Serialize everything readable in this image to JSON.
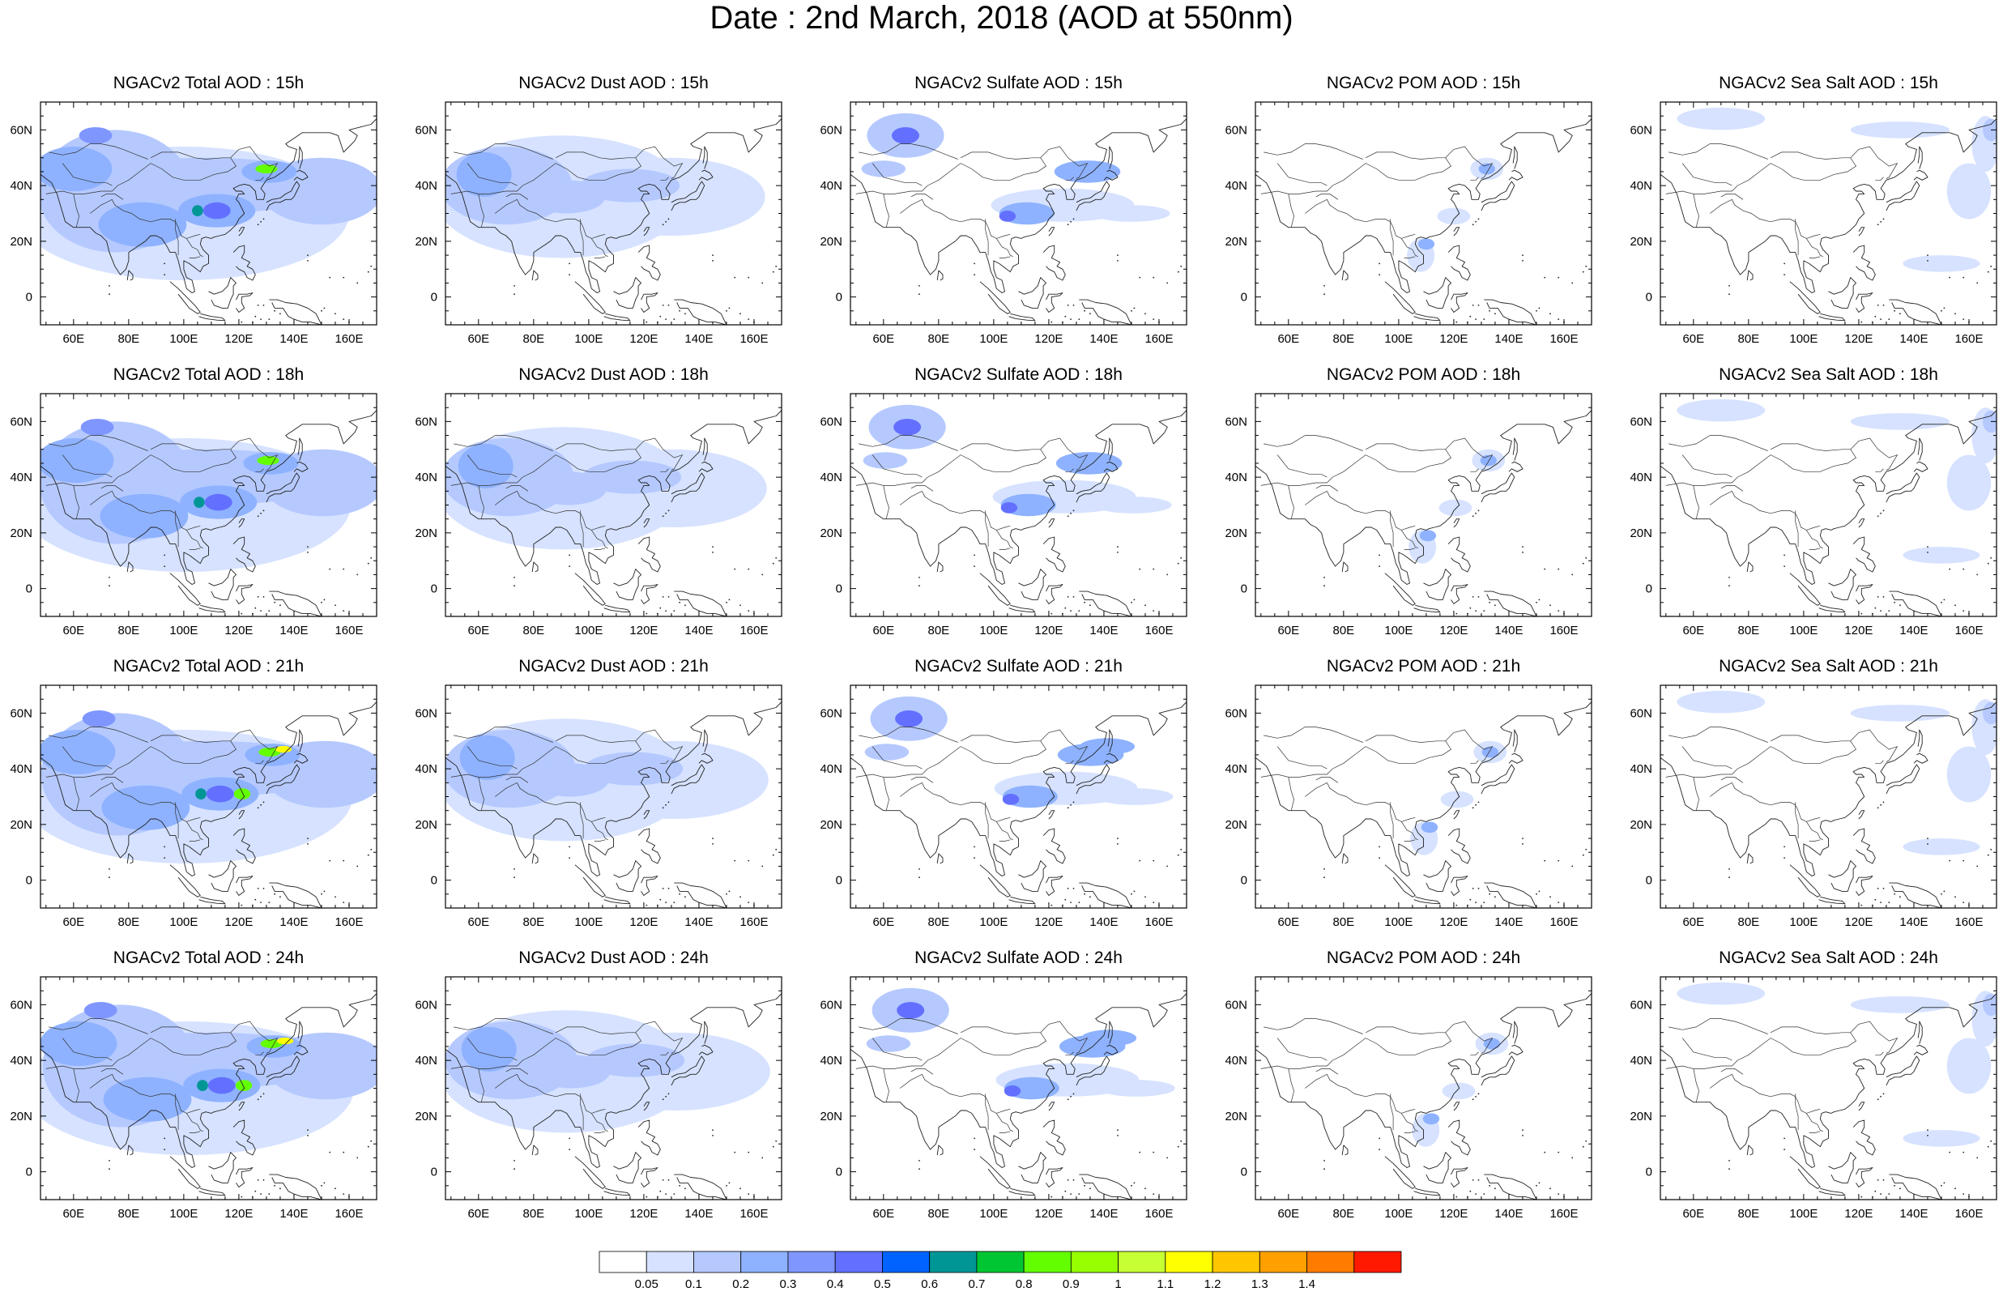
{
  "figure": {
    "title": "Date : 2nd March, 2018 (AOD at 550nm)"
  },
  "axes": {
    "x_ticks": [
      "60E",
      "80E",
      "100E",
      "120E",
      "140E",
      "160E"
    ],
    "x_tick_values": [
      60,
      80,
      100,
      120,
      140,
      160
    ],
    "y_ticks": [
      "60N",
      "40N",
      "20N",
      "0"
    ],
    "y_tick_values": [
      60,
      40,
      20,
      0
    ],
    "lon_range": [
      48,
      170
    ],
    "lat_range": [
      -10,
      70
    ]
  },
  "panels": [
    {
      "title": "NGACv2 Total AOD : 15h",
      "species": "total",
      "hour": 15
    },
    {
      "title": "NGACv2 Dust AOD : 15h",
      "species": "dust",
      "hour": 15
    },
    {
      "title": "NGACv2 Sulfate AOD : 15h",
      "species": "sulfate",
      "hour": 15
    },
    {
      "title": "NGACv2 POM AOD : 15h",
      "species": "pom",
      "hour": 15
    },
    {
      "title": "NGACv2 Sea Salt AOD : 15h",
      "species": "seasalt",
      "hour": 15
    },
    {
      "title": "NGACv2 Total AOD : 18h",
      "species": "total",
      "hour": 18
    },
    {
      "title": "NGACv2 Dust AOD : 18h",
      "species": "dust",
      "hour": 18
    },
    {
      "title": "NGACv2 Sulfate AOD : 18h",
      "species": "sulfate",
      "hour": 18
    },
    {
      "title": "NGACv2 POM AOD : 18h",
      "species": "pom",
      "hour": 18
    },
    {
      "title": "NGACv2 Sea Salt AOD : 18h",
      "species": "seasalt",
      "hour": 18
    },
    {
      "title": "NGACv2 Total AOD : 21h",
      "species": "total",
      "hour": 21
    },
    {
      "title": "NGACv2 Dust AOD : 21h",
      "species": "dust",
      "hour": 21
    },
    {
      "title": "NGACv2 Sulfate AOD : 21h",
      "species": "sulfate",
      "hour": 21
    },
    {
      "title": "NGACv2 POM AOD : 21h",
      "species": "pom",
      "hour": 21
    },
    {
      "title": "NGACv2 Sea Salt AOD : 21h",
      "species": "seasalt",
      "hour": 21
    },
    {
      "title": "NGACv2 Total AOD : 24h",
      "species": "total",
      "hour": 24
    },
    {
      "title": "NGACv2 Dust AOD : 24h",
      "species": "dust",
      "hour": 24
    },
    {
      "title": "NGACv2 Sulfate AOD : 24h",
      "species": "sulfate",
      "hour": 24
    },
    {
      "title": "NGACv2 POM AOD : 24h",
      "species": "pom",
      "hour": 24
    },
    {
      "title": "NGACv2 Sea Salt  AOD : 24h",
      "species": "seasalt",
      "hour": 24
    }
  ],
  "colorbar": {
    "labels": [
      "0.05",
      "0.1",
      "0.2",
      "0.3",
      "0.4",
      "0.5",
      "0.6",
      "0.7",
      "0.8",
      "0.9",
      "1",
      "1.1",
      "1.2",
      "1.3",
      "1.4"
    ],
    "colors": [
      "#ffffff",
      "#d6e2ff",
      "#b5c9ff",
      "#8eb2ff",
      "#7f96ff",
      "#6370ff",
      "#0063ff",
      "#009696",
      "#00c633",
      "#63ff00",
      "#96ff00",
      "#c6ff33",
      "#ffff00",
      "#ffc600",
      "#ffa000",
      "#ff7c00",
      "#ff1900"
    ]
  },
  "color_levels": {
    "very_light": "#d6e2ff",
    "light": "#b5c9ff",
    "medium": "#8eb2ff",
    "strong": "#7f96ff",
    "dark": "#6370ff",
    "hot_green": "#63ff00",
    "hot_yellow": "#ffff00",
    "teal": "#009696"
  }
}
